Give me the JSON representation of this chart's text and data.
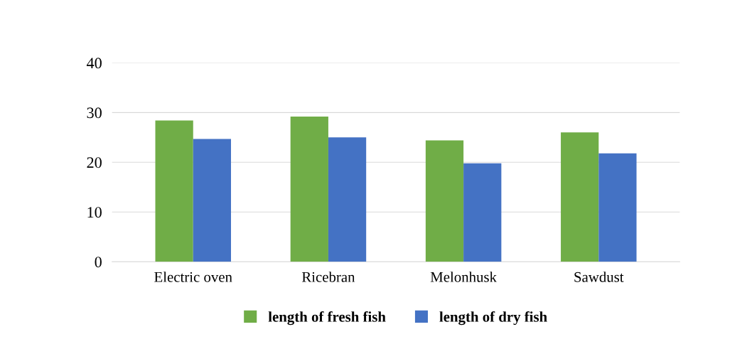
{
  "chart_data": {
    "type": "bar",
    "categories": [
      "Electric oven",
      "Ricebran",
      "Melonhusk",
      "Sawdust"
    ],
    "series": [
      {
        "name": "length of fresh fish",
        "color": "#70ad47",
        "values": [
          28.4,
          29.2,
          24.4,
          26.0
        ]
      },
      {
        "name": "length of dry fish",
        "color": "#4472c4",
        "values": [
          24.7,
          25.0,
          19.8,
          21.8
        ]
      }
    ],
    "ylim": [
      0,
      40
    ],
    "yticks": [
      0,
      10,
      20,
      30,
      40
    ],
    "grid": "y",
    "legend": "bottom"
  }
}
